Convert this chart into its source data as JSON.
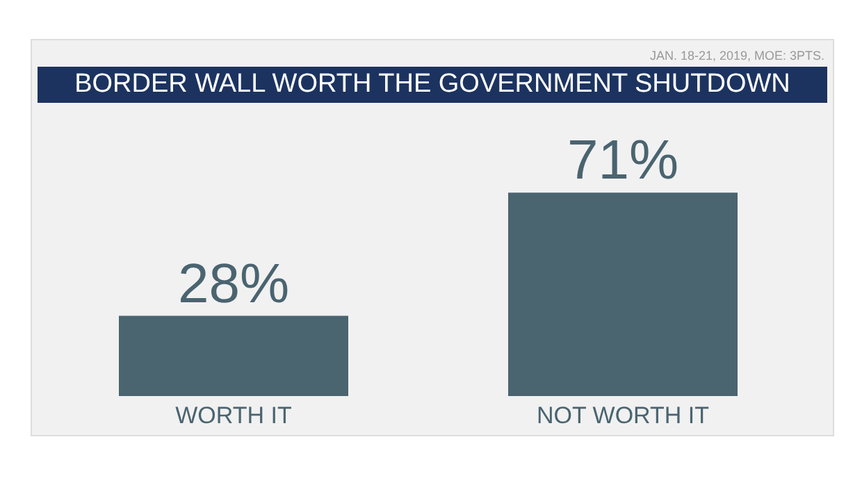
{
  "chart_data": {
    "type": "bar",
    "title": "BORDER WALL WORTH THE GOVERNMENT SHUTDOWN",
    "annotations": [
      "JAN. 18-21, 2019, MOE: 3PTS."
    ],
    "categories": [
      "WORTH IT",
      "NOT WORTH IT"
    ],
    "values": [
      28,
      71
    ],
    "color": "#4a6470",
    "value_labels": [
      "28%",
      "71%"
    ]
  }
}
